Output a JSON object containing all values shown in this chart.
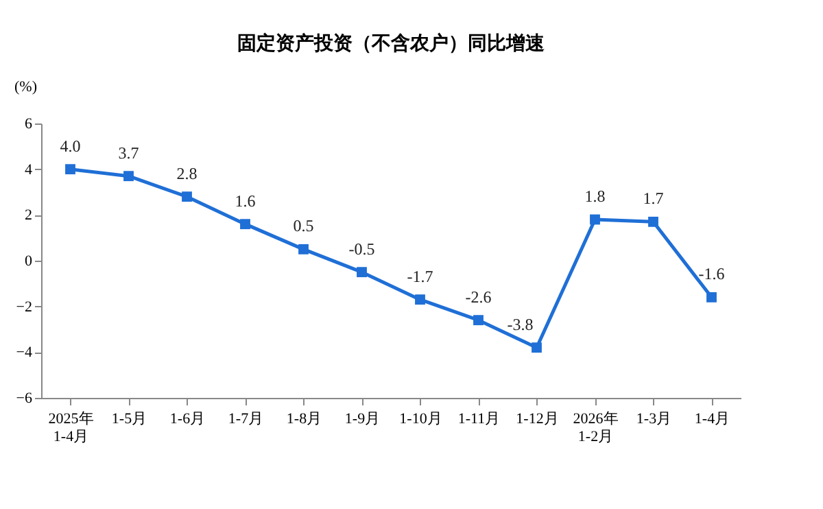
{
  "chart_data": {
    "type": "line",
    "title": "固定资产投资（不含农户）同比增速",
    "ylabel": "(%)",
    "categories": [
      "2025年\n1-4月",
      "1-5月",
      "1-6月",
      "1-7月",
      "1-8月",
      "1-9月",
      "1-10月",
      "1-11月",
      "1-12月",
      "2026年\n1-2月",
      "1-3月",
      "1-4月"
    ],
    "series": [
      {
        "color": "#1f6fd6",
        "values": [
          4.0,
          3.7,
          2.8,
          1.6,
          0.5,
          -0.5,
          -1.7,
          -2.6,
          -3.8,
          1.8,
          1.7,
          -1.6
        ],
        "value_labels": [
          "4.0",
          "3.7",
          "2.8",
          "1.6",
          "0.5",
          "-0.5",
          "-1.7",
          "-2.6",
          "-3.8",
          "1.8",
          "1.7",
          "-1.6"
        ]
      }
    ],
    "ylim": [
      -6,
      6
    ],
    "yticks": [
      -6,
      -4,
      -2,
      0,
      2,
      4,
      6
    ],
    "grid": false,
    "marker": "square",
    "line_style": "solid"
  }
}
